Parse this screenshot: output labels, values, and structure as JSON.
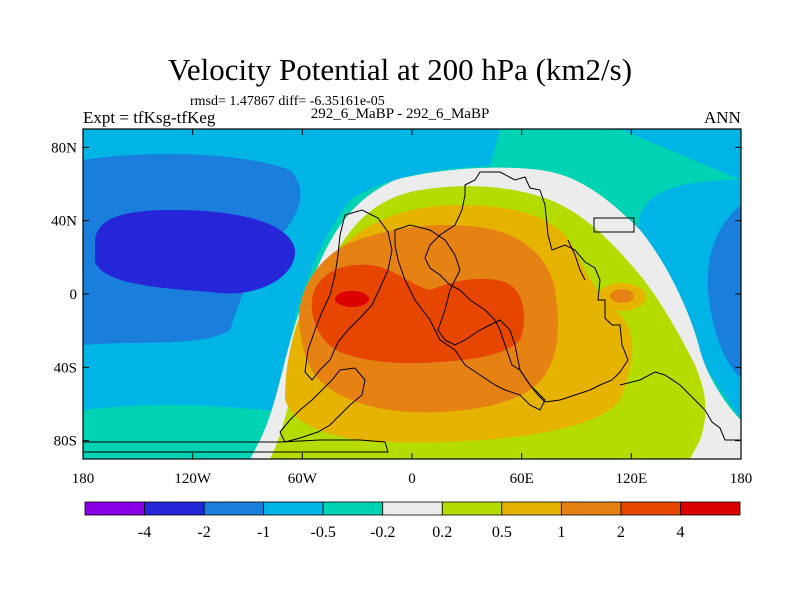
{
  "chart_data": {
    "type": "heatmap",
    "title": "Velocity Potential at 200 hPa (km2/s)",
    "stats": "rmsd= 1.47867 diff= -6.35161e-05",
    "left_label": "Expt = tfKsg-tfKeg",
    "center_label": "292_6_MaBP - 292_6_MaBP",
    "right_label": "ANN",
    "x_ticks": [
      "180",
      "120W",
      "60W",
      "0",
      "60E",
      "120E",
      "180"
    ],
    "x_tick_lon": [
      -180,
      -120,
      -60,
      0,
      60,
      120,
      180
    ],
    "y_ticks": [
      "80N",
      "40N",
      "0",
      "40S",
      "80S"
    ],
    "y_tick_lat": [
      80,
      40,
      0,
      -40,
      -80
    ],
    "xlim": [
      -180,
      180
    ],
    "ylim": [
      -90,
      90
    ],
    "colorbar_levels": [
      "-4",
      "-2",
      "-1",
      "-0.5",
      "-0.2",
      "0.2",
      "0.5",
      "1",
      "2",
      "4"
    ],
    "colorbar_colors": [
      "#8a00e6",
      "#2626d9",
      "#1a7fdc",
      "#00b4e6",
      "#00d2b4",
      "#ececec",
      "#b4dc00",
      "#e6b400",
      "#e68214",
      "#e64600",
      "#dc0000"
    ]
  }
}
